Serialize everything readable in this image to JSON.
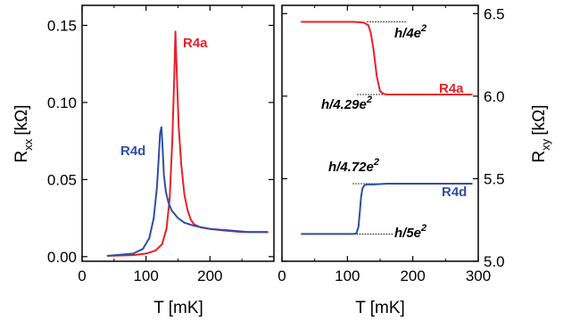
{
  "chart_data": [
    {
      "type": "line",
      "panel": "left",
      "xlabel": "T [mK]",
      "ylabel_main": "R",
      "ylabel_sub": "xx",
      "ylabel_unit": "[kΩ]",
      "xlim": [
        0,
        300
      ],
      "ylim": [
        -0.003,
        0.163
      ],
      "xticks": [
        0,
        100,
        200
      ],
      "xtick_labels": [
        "0",
        "100",
        "200"
      ],
      "yticks": [
        0.0,
        0.05,
        0.1,
        0.15
      ],
      "ytick_labels": [
        "0.00",
        "0.05",
        "0.10",
        "0.15"
      ],
      "series": [
        {
          "name": "R4a",
          "color": "#e8202a",
          "x": [
            40,
            80,
            100,
            115,
            125,
            132,
            137,
            141,
            144,
            146,
            148,
            151,
            155,
            160,
            165,
            170,
            175,
            185,
            200,
            220,
            250,
            290
          ],
          "y": [
            0.0005,
            0.001,
            0.002,
            0.004,
            0.008,
            0.018,
            0.038,
            0.075,
            0.115,
            0.146,
            0.12,
            0.085,
            0.06,
            0.04,
            0.03,
            0.024,
            0.021,
            0.019,
            0.018,
            0.017,
            0.016,
            0.016
          ]
        },
        {
          "name": "R4d",
          "color": "#2e4fa3",
          "x": [
            40,
            80,
            95,
            105,
            112,
            117,
            120,
            122,
            124,
            126,
            128,
            131,
            135,
            140,
            150,
            160,
            175,
            200,
            230,
            260,
            290
          ],
          "y": [
            0.0005,
            0.002,
            0.005,
            0.012,
            0.025,
            0.045,
            0.065,
            0.08,
            0.084,
            0.07,
            0.053,
            0.042,
            0.035,
            0.03,
            0.025,
            0.022,
            0.02,
            0.018,
            0.017,
            0.016,
            0.016
          ]
        }
      ]
    },
    {
      "type": "line",
      "panel": "right",
      "xlabel": "T [mK]",
      "ylabel_main": "R",
      "ylabel_sub": "xy",
      "ylabel_unit": "[kΩ]",
      "xlim": [
        0,
        300
      ],
      "ylim": [
        5.0,
        6.55
      ],
      "xticks": [
        0,
        100,
        200,
        300
      ],
      "xtick_labels": [
        "0",
        "100",
        "200",
        "300"
      ],
      "yticks": [
        5.0,
        5.5,
        6.0,
        6.5
      ],
      "ytick_labels": [
        "5.0",
        "5.5",
        "6.0",
        "6.5"
      ],
      "series": [
        {
          "name": "R4a",
          "color": "#e8202a",
          "x": [
            30,
            80,
            110,
            125,
            132,
            136,
            140,
            145,
            150,
            155,
            160,
            200,
            250,
            290
          ],
          "y": [
            6.45,
            6.45,
            6.45,
            6.445,
            6.43,
            6.38,
            6.28,
            6.12,
            6.03,
            6.015,
            6.01,
            6.01,
            6.01,
            6.01
          ]
        },
        {
          "name": "R4d",
          "color": "#2e4fa3",
          "x": [
            30,
            80,
            110,
            114,
            117,
            119,
            121,
            123,
            126,
            130,
            140,
            160,
            200,
            250,
            290
          ],
          "y": [
            5.165,
            5.165,
            5.165,
            5.17,
            5.21,
            5.3,
            5.39,
            5.44,
            5.46,
            5.465,
            5.465,
            5.47,
            5.47,
            5.47,
            5.47
          ]
        }
      ],
      "annotations": [
        {
          "label": "h/4e",
          "sup": "2",
          "value": 6.45,
          "line_x": [
            130,
            190
          ]
        },
        {
          "label": "h/4.29e",
          "sup": "2",
          "value": 6.01,
          "line_x": [
            115,
            175
          ]
        },
        {
          "label": "h/4.72e",
          "sup": "2",
          "value": 5.47,
          "line_x": [
            108,
            165
          ]
        },
        {
          "label": "h/5e",
          "sup": "2",
          "value": 5.165,
          "line_x": [
            110,
            170
          ]
        }
      ]
    }
  ]
}
